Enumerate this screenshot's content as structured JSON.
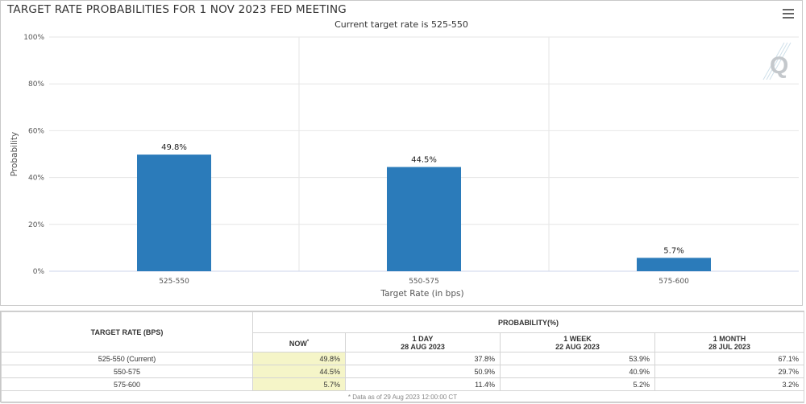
{
  "header": {
    "title": "TARGET RATE PROBABILITIES FOR 1 NOV 2023 FED MEETING",
    "subtitle": "Current target rate is 525-550"
  },
  "icons": {
    "menu": "hamburger-menu-icon",
    "watermark": "q-logo-icon"
  },
  "colors": {
    "bar": "#2b7bba",
    "grid": "#e6e6e6",
    "now_highlight": "#f5f5c8"
  },
  "chart_data": {
    "type": "bar",
    "title": "TARGET RATE PROBABILITIES FOR 1 NOV 2023 FED MEETING",
    "subtitle": "Current target rate is 525-550",
    "categories": [
      "525-550",
      "550-575",
      "575-600"
    ],
    "values": [
      49.8,
      44.5,
      5.7
    ],
    "data_labels": [
      "49.8%",
      "44.5%",
      "5.7%"
    ],
    "xlabel": "Target Rate (in bps)",
    "ylabel": "Probability",
    "ylim": [
      0,
      100
    ],
    "yticks": [
      0,
      20,
      40,
      60,
      80,
      100
    ],
    "ytick_labels": [
      "0%",
      "20%",
      "40%",
      "60%",
      "80%",
      "100%"
    ],
    "grid": true,
    "legend": "none"
  },
  "table": {
    "col_rate_header": "TARGET RATE (BPS)",
    "group_header": "PROBABILITY(%)",
    "columns": [
      {
        "line1": "NOW",
        "line2": "",
        "sup": "*"
      },
      {
        "line1": "1 DAY",
        "line2": "28 AUG 2023"
      },
      {
        "line1": "1 WEEK",
        "line2": "22 AUG 2023"
      },
      {
        "line1": "1 MONTH",
        "line2": "28 JUL 2023"
      }
    ],
    "rows": [
      {
        "rate": "525-550 (Current)",
        "values": [
          "49.8%",
          "37.8%",
          "53.9%",
          "67.1%"
        ]
      },
      {
        "rate": "550-575",
        "values": [
          "44.5%",
          "50.9%",
          "40.9%",
          "29.7%"
        ]
      },
      {
        "rate": "575-600",
        "values": [
          "5.7%",
          "11.4%",
          "5.2%",
          "3.2%"
        ]
      }
    ],
    "footnote": "* Data as of 29 Aug 2023 12:00:00 CT"
  }
}
